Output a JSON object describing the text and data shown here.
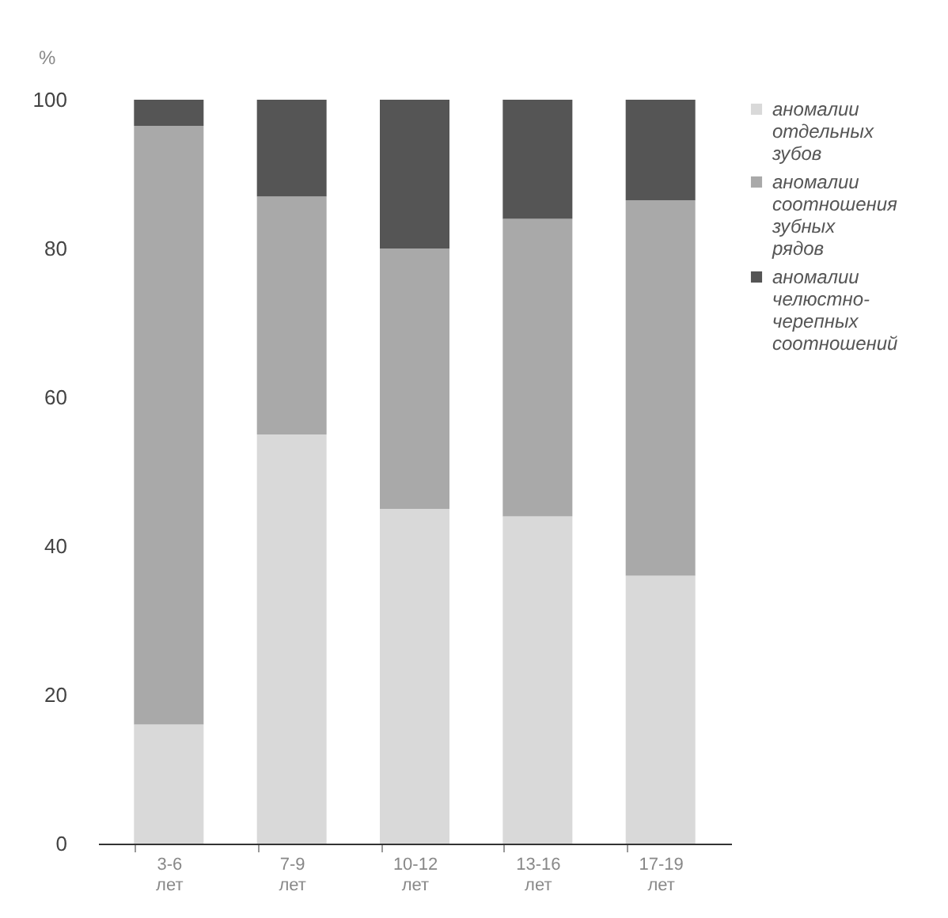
{
  "chart_data": {
    "type": "bar",
    "ylabel": "%",
    "stacked": true,
    "legend": "top right",
    "grid": false,
    "categories": [
      "3-6 лет",
      "7-9 лет",
      "10-12 лет",
      "13-16 лет",
      "17-19 лет"
    ],
    "ylim": [
      0,
      100
    ],
    "yticks": [
      0,
      20,
      40,
      60,
      80,
      100
    ],
    "series": [
      {
        "name": "аномалии отдельных зубов",
        "color": "#d9d9d9",
        "values": [
          16,
          55,
          45,
          44,
          36
        ]
      },
      {
        "name": "аномалии соотношения зубных рядов",
        "color": "#a9a9a9",
        "values": [
          80.5,
          32,
          35,
          40,
          50.5
        ]
      },
      {
        "name": "аномалии челюстно- черепных соотношений",
        "color": "#555555",
        "values": [
          3.5,
          13,
          20,
          16,
          13.5
        ]
      }
    ]
  }
}
